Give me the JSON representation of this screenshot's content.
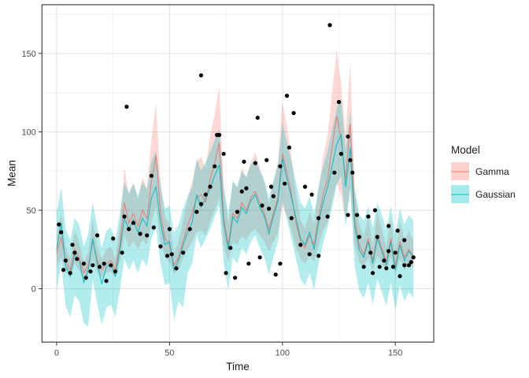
{
  "chart_data": {
    "type": "line",
    "title": "",
    "xlabel": "Time",
    "ylabel": "Mean",
    "legend_title": "Model",
    "legend_position": "right",
    "grid": true,
    "xlim": [
      -6.5,
      167
    ],
    "ylim": [
      -34,
      181
    ],
    "x_ticks": [
      0,
      50,
      100,
      150
    ],
    "y_ticks": [
      0,
      50,
      100,
      150
    ],
    "x_minor": [
      25,
      75,
      125
    ],
    "y_minor": [
      25,
      75,
      125,
      175
    ],
    "x": [
      0,
      2,
      4,
      6,
      8,
      10,
      12,
      14,
      16,
      18,
      20,
      22,
      24,
      26,
      28,
      30,
      32,
      34,
      36,
      38,
      40,
      42,
      44,
      46,
      48,
      50,
      52,
      54,
      56,
      58,
      60,
      62,
      64,
      66,
      68,
      70,
      72,
      74,
      76,
      78,
      80,
      82,
      84,
      86,
      88,
      90,
      92,
      94,
      96,
      98,
      100,
      102,
      104,
      106,
      108,
      110,
      112,
      114,
      116,
      118,
      120,
      122,
      124,
      126,
      128,
      130,
      132,
      134,
      136,
      138,
      140,
      142,
      144,
      146,
      148,
      150,
      152,
      154,
      156,
      158
    ],
    "series": [
      {
        "name": "Gamma",
        "color": "#F8766D",
        "fill_color": "#F8766D",
        "fill_opacity": 0.28,
        "mean": [
          22,
          33,
          18,
          12,
          25,
          20,
          10,
          15,
          30,
          18,
          12,
          16,
          18,
          12,
          28,
          55,
          42,
          48,
          40,
          50,
          45,
          68,
          85,
          48,
          32,
          28,
          15,
          20,
          30,
          40,
          48,
          58,
          60,
          55,
          70,
          80,
          93,
          45,
          28,
          48,
          45,
          55,
          50,
          58,
          62,
          55,
          48,
          38,
          48,
          58,
          86,
          74,
          60,
          42,
          30,
          26,
          34,
          28,
          45,
          60,
          70,
          90,
          110,
          95,
          70,
          105,
          45,
          28,
          22,
          32,
          18,
          34,
          26,
          17,
          32,
          14,
          30,
          20,
          25,
          21
        ],
        "upper": [
          33,
          48,
          27,
          19,
          37,
          30,
          17,
          23,
          44,
          27,
          19,
          25,
          27,
          19,
          41,
          77,
          60,
          68,
          57,
          71,
          64,
          95,
          118,
          68,
          46,
          41,
          23,
          30,
          44,
          57,
          68,
          81,
          84,
          77,
          98,
          111,
          129,
          64,
          41,
          68,
          64,
          77,
          71,
          81,
          87,
          77,
          68,
          54,
          68,
          81,
          119,
          103,
          84,
          60,
          44,
          38,
          49,
          41,
          64,
          84,
          98,
          125,
          152,
          131,
          98,
          145,
          64,
          41,
          33,
          46,
          27,
          49,
          38,
          26,
          46,
          22,
          44,
          30,
          37,
          31
        ],
        "lower": [
          14,
          20,
          11,
          7,
          16,
          12,
          6,
          9,
          19,
          11,
          7,
          10,
          11,
          7,
          17,
          34,
          26,
          30,
          25,
          31,
          28,
          42,
          53,
          30,
          20,
          17,
          9,
          12,
          19,
          25,
          30,
          36,
          37,
          34,
          43,
          50,
          58,
          28,
          17,
          30,
          28,
          34,
          31,
          36,
          38,
          34,
          30,
          24,
          30,
          36,
          53,
          46,
          37,
          26,
          19,
          16,
          21,
          17,
          28,
          37,
          43,
          56,
          68,
          59,
          43,
          65,
          28,
          17,
          14,
          20,
          11,
          21,
          16,
          11,
          20,
          9,
          19,
          12,
          16,
          13
        ]
      },
      {
        "name": "Gaussian",
        "color": "#00BFC4",
        "fill_color": "#00BFC4",
        "fill_opacity": 0.3,
        "mean": [
          25,
          42,
          15,
          8,
          22,
          18,
          4,
          12,
          32,
          16,
          3,
          14,
          16,
          8,
          25,
          45,
          38,
          44,
          36,
          45,
          40,
          58,
          65,
          42,
          28,
          30,
          12,
          18,
          28,
          36,
          42,
          60,
          52,
          58,
          64,
          72,
          79,
          42,
          25,
          46,
          42,
          52,
          48,
          56,
          60,
          52,
          46,
          35,
          46,
          56,
          83,
          70,
          58,
          45,
          32,
          28,
          36,
          25,
          42,
          55,
          65,
          78,
          92,
          98,
          65,
          90,
          40,
          25,
          20,
          30,
          16,
          32,
          24,
          15,
          30,
          12,
          28,
          18,
          24,
          20
        ],
        "upper": [
          48,
          65,
          38,
          31,
          45,
          41,
          27,
          35,
          55,
          39,
          26,
          37,
          39,
          31,
          48,
          68,
          61,
          67,
          59,
          68,
          63,
          81,
          88,
          65,
          51,
          53,
          35,
          41,
          51,
          59,
          65,
          83,
          75,
          81,
          87,
          95,
          102,
          65,
          48,
          69,
          65,
          75,
          71,
          79,
          83,
          75,
          69,
          58,
          69,
          79,
          106,
          93,
          81,
          68,
          55,
          51,
          59,
          48,
          65,
          78,
          88,
          101,
          115,
          121,
          88,
          113,
          63,
          48,
          43,
          53,
          39,
          55,
          47,
          38,
          53,
          35,
          51,
          41,
          47,
          43
        ],
        "lower": [
          -1,
          16,
          -11,
          -18,
          -4,
          -8,
          -22,
          -24,
          6,
          -10,
          -23,
          -12,
          -10,
          -18,
          -1,
          19,
          12,
          18,
          10,
          19,
          14,
          32,
          39,
          16,
          2,
          4,
          -20,
          -8,
          -12,
          10,
          16,
          34,
          26,
          32,
          38,
          46,
          53,
          16,
          -1,
          20,
          16,
          26,
          22,
          30,
          34,
          26,
          20,
          9,
          20,
          30,
          57,
          44,
          32,
          19,
          6,
          2,
          10,
          -1,
          16,
          29,
          39,
          52,
          66,
          72,
          39,
          64,
          14,
          -1,
          -6,
          4,
          -10,
          6,
          -2,
          -11,
          4,
          -14,
          2,
          -8,
          -2,
          -6
        ]
      }
    ],
    "points": {
      "color": "#000000",
      "radius": 2.6,
      "data": [
        [
          1,
          41
        ],
        [
          2,
          36
        ],
        [
          3,
          12
        ],
        [
          4,
          18
        ],
        [
          6,
          10
        ],
        [
          7,
          28
        ],
        [
          8,
          23
        ],
        [
          9,
          19
        ],
        [
          12,
          16
        ],
        [
          13,
          7
        ],
        [
          15,
          11
        ],
        [
          16,
          15
        ],
        [
          18,
          34
        ],
        [
          19,
          14
        ],
        [
          21,
          16
        ],
        [
          22,
          5
        ],
        [
          24,
          15
        ],
        [
          25,
          32
        ],
        [
          26,
          11
        ],
        [
          29,
          23
        ],
        [
          30,
          46
        ],
        [
          31,
          116
        ],
        [
          32,
          38
        ],
        [
          34,
          42
        ],
        [
          37,
          35
        ],
        [
          40,
          34
        ],
        [
          42,
          72
        ],
        [
          43,
          39
        ],
        [
          46,
          27
        ],
        [
          49,
          21
        ],
        [
          50,
          38
        ],
        [
          51,
          22
        ],
        [
          53,
          13
        ],
        [
          56,
          23
        ],
        [
          59,
          38
        ],
        [
          62,
          49
        ],
        [
          64,
          136
        ],
        [
          64,
          54
        ],
        [
          66,
          60
        ],
        [
          68,
          65
        ],
        [
          70,
          78
        ],
        [
          71,
          98
        ],
        [
          72,
          98
        ],
        [
          74,
          86
        ],
        [
          75,
          10
        ],
        [
          77,
          26
        ],
        [
          79,
          7
        ],
        [
          80,
          49
        ],
        [
          82,
          62
        ],
        [
          83,
          81
        ],
        [
          84,
          64
        ],
        [
          85,
          16
        ],
        [
          88,
          80
        ],
        [
          89,
          109
        ],
        [
          90,
          20
        ],
        [
          91,
          53
        ],
        [
          93,
          82
        ],
        [
          94,
          51
        ],
        [
          95,
          65
        ],
        [
          96,
          59
        ],
        [
          97,
          9
        ],
        [
          99,
          16
        ],
        [
          99,
          78
        ],
        [
          101,
          67
        ],
        [
          102,
          123
        ],
        [
          103,
          90
        ],
        [
          104,
          45
        ],
        [
          105,
          112
        ],
        [
          108,
          28
        ],
        [
          110,
          65
        ],
        [
          112,
          22
        ],
        [
          113,
          60
        ],
        [
          116,
          21
        ],
        [
          116,
          45
        ],
        [
          120,
          46
        ],
        [
          121,
          168
        ],
        [
          123,
          74
        ],
        [
          125,
          119
        ],
        [
          126,
          86
        ],
        [
          129,
          97
        ],
        [
          129,
          47
        ],
        [
          130,
          82
        ],
        [
          131,
          74
        ],
        [
          133,
          47
        ],
        [
          134,
          33
        ],
        [
          136,
          14
        ],
        [
          138,
          46
        ],
        [
          139,
          23
        ],
        [
          140,
          10
        ],
        [
          141,
          50
        ],
        [
          142,
          33
        ],
        [
          143,
          14
        ],
        [
          145,
          18
        ],
        [
          146,
          13
        ],
        [
          147,
          24
        ],
        [
          147,
          40
        ],
        [
          149,
          14
        ],
        [
          150,
          23
        ],
        [
          151,
          37
        ],
        [
          152,
          8
        ],
        [
          154,
          15
        ],
        [
          154,
          31
        ],
        [
          156,
          15
        ],
        [
          157,
          17
        ],
        [
          158,
          20
        ]
      ]
    },
    "style": {
      "panel_border": "#333333",
      "grid_major": "#e3e3e3",
      "grid_minor": "#f0f0f0",
      "tick_color": "#333333",
      "tick_label_color": "#4d4d4d"
    }
  }
}
